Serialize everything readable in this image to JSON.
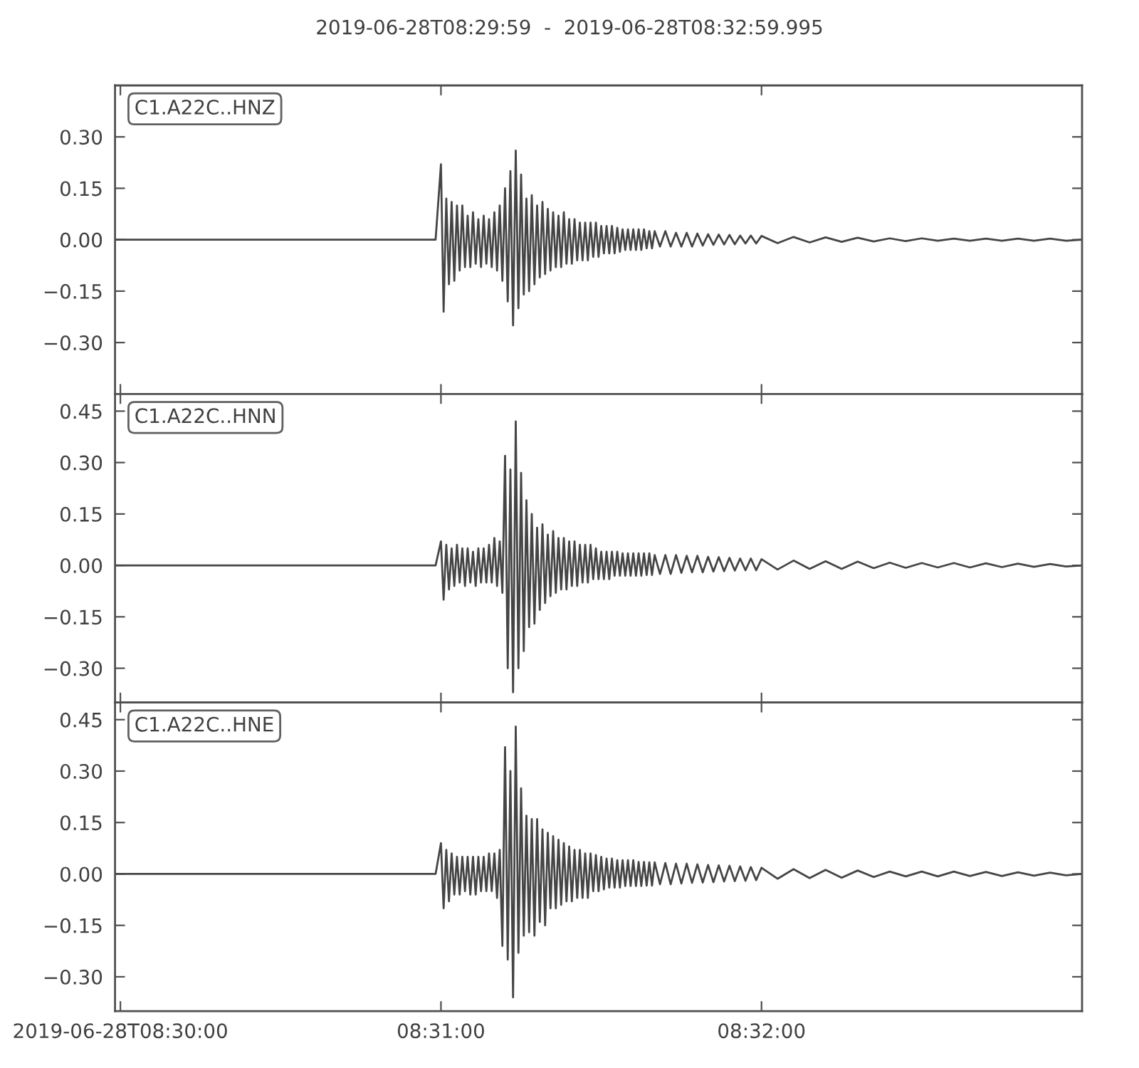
{
  "chart_data": [
    {
      "type": "line",
      "title": "2019-06-28T08:29:59  -  2019-06-28T08:32:59.995",
      "annotations": [
        "C1.A22C..HNZ"
      ],
      "color": "#454545",
      "x": [
        "2019-06-28T08:29:59",
        "2019-06-28T08:30:59",
        "2019-06-28T08:31:00",
        "2019-06-28T08:31:00.5",
        "2019-06-28T08:31:01",
        "2019-06-28T08:31:01.5",
        "2019-06-28T08:31:02",
        "2019-06-28T08:31:02.5",
        "2019-06-28T08:31:03",
        "2019-06-28T08:31:03.5",
        "2019-06-28T08:31:04",
        "2019-06-28T08:31:04.5",
        "2019-06-28T08:31:05",
        "2019-06-28T08:31:05.5",
        "2019-06-28T08:31:06",
        "2019-06-28T08:31:06.5",
        "2019-06-28T08:31:07",
        "2019-06-28T08:31:07.5",
        "2019-06-28T08:31:08",
        "2019-06-28T08:31:08.5",
        "2019-06-28T08:31:09",
        "2019-06-28T08:31:09.5",
        "2019-06-28T08:31:10",
        "2019-06-28T08:31:10.5",
        "2019-06-28T08:31:11",
        "2019-06-28T08:31:11.5",
        "2019-06-28T08:31:12",
        "2019-06-28T08:31:12.5",
        "2019-06-28T08:31:13",
        "2019-06-28T08:31:13.5",
        "2019-06-28T08:31:14",
        "2019-06-28T08:31:14.5",
        "2019-06-28T08:31:15",
        "2019-06-28T08:31:15.5",
        "2019-06-28T08:31:16",
        "2019-06-28T08:31:16.5",
        "2019-06-28T08:31:17",
        "2019-06-28T08:31:17.5",
        "2019-06-28T08:31:18",
        "2019-06-28T08:31:18.5",
        "2019-06-28T08:31:19",
        "2019-06-28T08:31:19.5",
        "2019-06-28T08:31:20",
        "2019-06-28T08:31:20.5",
        "2019-06-28T08:31:21",
        "2019-06-28T08:31:21.5",
        "2019-06-28T08:31:22",
        "2019-06-28T08:31:22.5",
        "2019-06-28T08:31:23",
        "2019-06-28T08:31:23.5",
        "2019-06-28T08:31:24",
        "2019-06-28T08:31:24.5",
        "2019-06-28T08:31:25",
        "2019-06-28T08:31:25.5",
        "2019-06-28T08:31:26",
        "2019-06-28T08:31:26.5",
        "2019-06-28T08:31:27",
        "2019-06-28T08:31:27.5",
        "2019-06-28T08:31:28",
        "2019-06-28T08:31:28.5",
        "2019-06-28T08:31:29",
        "2019-06-28T08:31:29.5",
        "2019-06-28T08:31:30",
        "2019-06-28T08:31:30.5",
        "2019-06-28T08:31:31",
        "2019-06-28T08:31:31.5",
        "2019-06-28T08:31:32",
        "2019-06-28T08:31:32.5",
        "2019-06-28T08:31:33",
        "2019-06-28T08:31:33.5",
        "2019-06-28T08:31:34",
        "2019-06-28T08:31:34.5",
        "2019-06-28T08:31:35",
        "2019-06-28T08:31:35.5",
        "2019-06-28T08:31:36",
        "2019-06-28T08:31:36.5",
        "2019-06-28T08:31:37",
        "2019-06-28T08:31:37.5",
        "2019-06-28T08:31:38",
        "2019-06-28T08:31:38.5",
        "2019-06-28T08:31:39",
        "2019-06-28T08:31:39.5",
        "2019-06-28T08:31:40",
        "2019-06-28T08:31:41",
        "2019-06-28T08:31:42",
        "2019-06-28T08:31:43",
        "2019-06-28T08:31:44",
        "2019-06-28T08:31:45",
        "2019-06-28T08:31:46",
        "2019-06-28T08:31:47",
        "2019-06-28T08:31:48",
        "2019-06-28T08:31:49",
        "2019-06-28T08:31:50",
        "2019-06-28T08:31:51",
        "2019-06-28T08:31:52",
        "2019-06-28T08:31:53",
        "2019-06-28T08:31:54",
        "2019-06-28T08:31:55",
        "2019-06-28T08:31:56",
        "2019-06-28T08:31:57",
        "2019-06-28T08:31:58",
        "2019-06-28T08:31:59",
        "2019-06-28T08:32:00",
        "2019-06-28T08:32:03",
        "2019-06-28T08:32:06",
        "2019-06-28T08:32:09",
        "2019-06-28T08:32:12",
        "2019-06-28T08:32:15",
        "2019-06-28T08:32:18",
        "2019-06-28T08:32:21",
        "2019-06-28T08:32:24",
        "2019-06-28T08:32:27",
        "2019-06-28T08:32:30",
        "2019-06-28T08:32:33",
        "2019-06-28T08:32:36",
        "2019-06-28T08:32:39",
        "2019-06-28T08:32:42",
        "2019-06-28T08:32:45",
        "2019-06-28T08:32:48",
        "2019-06-28T08:32:51",
        "2019-06-28T08:32:54",
        "2019-06-28T08:32:57",
        "2019-06-28T08:32:59.995"
      ],
      "values": [
        0,
        0,
        0.22,
        -0.21,
        0.12,
        -0.13,
        0.11,
        -0.12,
        0.1,
        -0.09,
        0.1,
        -0.08,
        0.07,
        -0.08,
        0.08,
        -0.07,
        0.06,
        -0.08,
        0.07,
        -0.07,
        0.06,
        -0.08,
        0.08,
        -0.09,
        0.1,
        -0.12,
        0.15,
        -0.18,
        0.2,
        -0.25,
        0.26,
        -0.2,
        0.19,
        -0.16,
        0.12,
        -0.15,
        0.13,
        -0.13,
        0.1,
        -0.11,
        0.11,
        -0.1,
        0.09,
        -0.09,
        0.08,
        -0.08,
        0.07,
        -0.08,
        0.08,
        -0.07,
        0.06,
        -0.07,
        0.06,
        -0.06,
        0.05,
        -0.06,
        0.05,
        -0.06,
        0.05,
        -0.05,
        0.05,
        -0.05,
        0.04,
        -0.04,
        0.04,
        -0.04,
        0.04,
        -0.04,
        0.035,
        -0.035,
        0.03,
        -0.03,
        0.03,
        -0.03,
        0.03,
        -0.03,
        0.03,
        -0.03,
        0.03,
        -0.025,
        0.025,
        -0.025,
        0.025,
        -0.02,
        0.025,
        -0.02,
        0.02,
        -0.02,
        0.02,
        -0.02,
        0.018,
        -0.017,
        0.016,
        -0.015,
        0.015,
        -0.014,
        0.014,
        -0.013,
        0.012,
        -0.011,
        0.012,
        -0.011,
        0.011,
        -0.01,
        0.008,
        -0.008,
        0.007,
        -0.006,
        0.006,
        -0.005,
        0.004,
        -0.004,
        0.004,
        -0.003,
        0.003,
        -0.003,
        0.003,
        -0.003,
        0.003,
        -0.003,
        0.003,
        -0.003,
        0
      ],
      "xlim": [
        "2019-06-28T08:29:59",
        "2019-06-28T08:32:59.995"
      ],
      "xticks": [
        {
          "value": "2019-06-28T08:30:00",
          "label": null
        },
        {
          "value": "2019-06-28T08:31:00",
          "label": null
        },
        {
          "value": "2019-06-28T08:32:00",
          "label": null
        }
      ],
      "ylim": [
        -0.45,
        0.45
      ],
      "yticks": [
        {
          "value": -0.3,
          "label": "−0.30"
        },
        {
          "value": -0.15,
          "label": "−0.15"
        },
        {
          "value": 0,
          "label": "0.00"
        },
        {
          "value": 0.15,
          "label": "0.15"
        },
        {
          "value": 0.3,
          "label": "0.30"
        }
      ],
      "tick_labels": "y"
    },
    {
      "type": "line",
      "annotations": [
        "C1.A22C..HNN"
      ],
      "color": "#454545",
      "x": [
        "2019-06-28T08:29:59",
        "2019-06-28T08:30:59",
        "2019-06-28T08:31:00",
        "2019-06-28T08:31:00.5",
        "2019-06-28T08:31:01",
        "2019-06-28T08:31:01.5",
        "2019-06-28T08:31:02",
        "2019-06-28T08:31:02.5",
        "2019-06-28T08:31:03",
        "2019-06-28T08:31:03.5",
        "2019-06-28T08:31:04",
        "2019-06-28T08:31:04.5",
        "2019-06-28T08:31:05",
        "2019-06-28T08:31:05.5",
        "2019-06-28T08:31:06",
        "2019-06-28T08:31:06.5",
        "2019-06-28T08:31:07",
        "2019-06-28T08:31:07.5",
        "2019-06-28T08:31:08",
        "2019-06-28T08:31:08.5",
        "2019-06-28T08:31:09",
        "2019-06-28T08:31:09.5",
        "2019-06-28T08:31:10",
        "2019-06-28T08:31:10.5",
        "2019-06-28T08:31:11",
        "2019-06-28T08:31:11.5",
        "2019-06-28T08:31:12",
        "2019-06-28T08:31:12.5",
        "2019-06-28T08:31:13",
        "2019-06-28T08:31:13.5",
        "2019-06-28T08:31:14",
        "2019-06-28T08:31:14.5",
        "2019-06-28T08:31:15",
        "2019-06-28T08:31:15.5",
        "2019-06-28T08:31:16",
        "2019-06-28T08:31:16.5",
        "2019-06-28T08:31:17",
        "2019-06-28T08:31:17.5",
        "2019-06-28T08:31:18",
        "2019-06-28T08:31:18.5",
        "2019-06-28T08:31:19",
        "2019-06-28T08:31:19.5",
        "2019-06-28T08:31:20",
        "2019-06-28T08:31:20.5",
        "2019-06-28T08:31:21",
        "2019-06-28T08:31:21.5",
        "2019-06-28T08:31:22",
        "2019-06-28T08:31:22.5",
        "2019-06-28T08:31:23",
        "2019-06-28T08:31:23.5",
        "2019-06-28T08:31:24",
        "2019-06-28T08:31:24.5",
        "2019-06-28T08:31:25",
        "2019-06-28T08:31:25.5",
        "2019-06-28T08:31:26",
        "2019-06-28T08:31:26.5",
        "2019-06-28T08:31:27",
        "2019-06-28T08:31:27.5",
        "2019-06-28T08:31:28",
        "2019-06-28T08:31:28.5",
        "2019-06-28T08:31:29",
        "2019-06-28T08:31:29.5",
        "2019-06-28T08:31:30",
        "2019-06-28T08:31:30.5",
        "2019-06-28T08:31:31",
        "2019-06-28T08:31:31.5",
        "2019-06-28T08:31:32",
        "2019-06-28T08:31:32.5",
        "2019-06-28T08:31:33",
        "2019-06-28T08:31:33.5",
        "2019-06-28T08:31:34",
        "2019-06-28T08:31:34.5",
        "2019-06-28T08:31:35",
        "2019-06-28T08:31:35.5",
        "2019-06-28T08:31:36",
        "2019-06-28T08:31:36.5",
        "2019-06-28T08:31:37",
        "2019-06-28T08:31:37.5",
        "2019-06-28T08:31:38",
        "2019-06-28T08:31:38.5",
        "2019-06-28T08:31:39",
        "2019-06-28T08:31:39.5",
        "2019-06-28T08:31:40",
        "2019-06-28T08:31:41",
        "2019-06-28T08:31:42",
        "2019-06-28T08:31:43",
        "2019-06-28T08:31:44",
        "2019-06-28T08:31:45",
        "2019-06-28T08:31:46",
        "2019-06-28T08:31:47",
        "2019-06-28T08:31:48",
        "2019-06-28T08:31:49",
        "2019-06-28T08:31:50",
        "2019-06-28T08:31:51",
        "2019-06-28T08:31:52",
        "2019-06-28T08:31:53",
        "2019-06-28T08:31:54",
        "2019-06-28T08:31:55",
        "2019-06-28T08:31:56",
        "2019-06-28T08:31:57",
        "2019-06-28T08:31:58",
        "2019-06-28T08:31:59",
        "2019-06-28T08:32:00",
        "2019-06-28T08:32:03",
        "2019-06-28T08:32:06",
        "2019-06-28T08:32:09",
        "2019-06-28T08:32:12",
        "2019-06-28T08:32:15",
        "2019-06-28T08:32:18",
        "2019-06-28T08:32:21",
        "2019-06-28T08:32:24",
        "2019-06-28T08:32:27",
        "2019-06-28T08:32:30",
        "2019-06-28T08:32:33",
        "2019-06-28T08:32:36",
        "2019-06-28T08:32:39",
        "2019-06-28T08:32:42",
        "2019-06-28T08:32:45",
        "2019-06-28T08:32:48",
        "2019-06-28T08:32:51",
        "2019-06-28T08:32:54",
        "2019-06-28T08:32:57",
        "2019-06-28T08:32:59.995"
      ],
      "values": [
        0,
        0,
        0.07,
        -0.1,
        0.06,
        -0.07,
        0.05,
        -0.06,
        0.06,
        -0.05,
        0.05,
        -0.06,
        0.05,
        -0.05,
        0.04,
        -0.06,
        0.05,
        -0.05,
        0.05,
        -0.05,
        0.06,
        -0.05,
        0.08,
        -0.06,
        0.07,
        -0.08,
        0.32,
        -0.3,
        0.28,
        -0.37,
        0.42,
        -0.3,
        0.27,
        -0.25,
        0.19,
        -0.18,
        0.15,
        -0.17,
        0.11,
        -0.13,
        0.12,
        -0.11,
        0.09,
        -0.09,
        0.1,
        -0.08,
        0.08,
        -0.07,
        0.08,
        -0.07,
        0.07,
        -0.06,
        0.07,
        -0.06,
        0.06,
        -0.05,
        0.06,
        -0.05,
        0.06,
        -0.04,
        0.05,
        -0.04,
        0.04,
        -0.04,
        0.04,
        -0.04,
        0.04,
        -0.03,
        0.04,
        -0.03,
        0.035,
        -0.03,
        0.035,
        -0.03,
        0.035,
        -0.03,
        0.035,
        -0.03,
        0.035,
        -0.028,
        0.035,
        -0.028,
        0.03,
        -0.025,
        0.03,
        -0.025,
        0.03,
        -0.022,
        0.028,
        -0.02,
        0.028,
        -0.02,
        0.025,
        -0.018,
        0.024,
        -0.017,
        0.022,
        -0.015,
        0.02,
        -0.014,
        0.02,
        -0.014,
        0.018,
        -0.012,
        0.014,
        -0.01,
        0.012,
        -0.01,
        0.011,
        -0.008,
        0.008,
        -0.007,
        0.007,
        -0.006,
        0.007,
        -0.006,
        0.006,
        -0.005,
        0.005,
        -0.004,
        0.004,
        -0.003,
        0
      ],
      "xlim": [
        "2019-06-28T08:29:59",
        "2019-06-28T08:32:59.995"
      ],
      "xticks": [
        {
          "value": "2019-06-28T08:30:00",
          "label": null
        },
        {
          "value": "2019-06-28T08:31:00",
          "label": null
        },
        {
          "value": "2019-06-28T08:32:00",
          "label": null
        }
      ],
      "ylim": [
        -0.4,
        0.5
      ],
      "yticks": [
        {
          "value": -0.3,
          "label": "−0.30"
        },
        {
          "value": -0.15,
          "label": "−0.15"
        },
        {
          "value": 0,
          "label": "0.00"
        },
        {
          "value": 0.15,
          "label": "0.15"
        },
        {
          "value": 0.3,
          "label": "0.30"
        },
        {
          "value": 0.45,
          "label": "0.45"
        }
      ],
      "tick_labels": "y"
    },
    {
      "type": "line",
      "annotations": [
        "C1.A22C..HNE"
      ],
      "color": "#454545",
      "x": [
        "2019-06-28T08:29:59",
        "2019-06-28T08:30:59",
        "2019-06-28T08:31:00",
        "2019-06-28T08:31:00.5",
        "2019-06-28T08:31:01",
        "2019-06-28T08:31:01.5",
        "2019-06-28T08:31:02",
        "2019-06-28T08:31:02.5",
        "2019-06-28T08:31:03",
        "2019-06-28T08:31:03.5",
        "2019-06-28T08:31:04",
        "2019-06-28T08:31:04.5",
        "2019-06-28T08:31:05",
        "2019-06-28T08:31:05.5",
        "2019-06-28T08:31:06",
        "2019-06-28T08:31:06.5",
        "2019-06-28T08:31:07",
        "2019-06-28T08:31:07.5",
        "2019-06-28T08:31:08",
        "2019-06-28T08:31:08.5",
        "2019-06-28T08:31:09",
        "2019-06-28T08:31:09.5",
        "2019-06-28T08:31:10",
        "2019-06-28T08:31:10.5",
        "2019-06-28T08:31:11",
        "2019-06-28T08:31:11.5",
        "2019-06-28T08:31:12",
        "2019-06-28T08:31:12.5",
        "2019-06-28T08:31:13",
        "2019-06-28T08:31:13.5",
        "2019-06-28T08:31:14",
        "2019-06-28T08:31:14.5",
        "2019-06-28T08:31:15",
        "2019-06-28T08:31:15.5",
        "2019-06-28T08:31:16",
        "2019-06-28T08:31:16.5",
        "2019-06-28T08:31:17",
        "2019-06-28T08:31:17.5",
        "2019-06-28T08:31:18",
        "2019-06-28T08:31:18.5",
        "2019-06-28T08:31:19",
        "2019-06-28T08:31:19.5",
        "2019-06-28T08:31:20",
        "2019-06-28T08:31:20.5",
        "2019-06-28T08:31:21",
        "2019-06-28T08:31:21.5",
        "2019-06-28T08:31:22",
        "2019-06-28T08:31:22.5",
        "2019-06-28T08:31:23",
        "2019-06-28T08:31:23.5",
        "2019-06-28T08:31:24",
        "2019-06-28T08:31:24.5",
        "2019-06-28T08:31:25",
        "2019-06-28T08:31:25.5",
        "2019-06-28T08:31:26",
        "2019-06-28T08:31:26.5",
        "2019-06-28T08:31:27",
        "2019-06-28T08:31:27.5",
        "2019-06-28T08:31:28",
        "2019-06-28T08:31:28.5",
        "2019-06-28T08:31:29",
        "2019-06-28T08:31:29.5",
        "2019-06-28T08:31:30",
        "2019-06-28T08:31:30.5",
        "2019-06-28T08:31:31",
        "2019-06-28T08:31:31.5",
        "2019-06-28T08:31:32",
        "2019-06-28T08:31:32.5",
        "2019-06-28T08:31:33",
        "2019-06-28T08:31:33.5",
        "2019-06-28T08:31:34",
        "2019-06-28T08:31:34.5",
        "2019-06-28T08:31:35",
        "2019-06-28T08:31:35.5",
        "2019-06-28T08:31:36",
        "2019-06-28T08:31:36.5",
        "2019-06-28T08:31:37",
        "2019-06-28T08:31:37.5",
        "2019-06-28T08:31:38",
        "2019-06-28T08:31:38.5",
        "2019-06-28T08:31:39",
        "2019-06-28T08:31:39.5",
        "2019-06-28T08:31:40",
        "2019-06-28T08:31:41",
        "2019-06-28T08:31:42",
        "2019-06-28T08:31:43",
        "2019-06-28T08:31:44",
        "2019-06-28T08:31:45",
        "2019-06-28T08:31:46",
        "2019-06-28T08:31:47",
        "2019-06-28T08:31:48",
        "2019-06-28T08:31:49",
        "2019-06-28T08:31:50",
        "2019-06-28T08:31:51",
        "2019-06-28T08:31:52",
        "2019-06-28T08:31:53",
        "2019-06-28T08:31:54",
        "2019-06-28T08:31:55",
        "2019-06-28T08:31:56",
        "2019-06-28T08:31:57",
        "2019-06-28T08:31:58",
        "2019-06-28T08:31:59",
        "2019-06-28T08:32:00",
        "2019-06-28T08:32:03",
        "2019-06-28T08:32:06",
        "2019-06-28T08:32:09",
        "2019-06-28T08:32:12",
        "2019-06-28T08:32:15",
        "2019-06-28T08:32:18",
        "2019-06-28T08:32:21",
        "2019-06-28T08:32:24",
        "2019-06-28T08:32:27",
        "2019-06-28T08:32:30",
        "2019-06-28T08:32:33",
        "2019-06-28T08:32:36",
        "2019-06-28T08:32:39",
        "2019-06-28T08:32:42",
        "2019-06-28T08:32:45",
        "2019-06-28T08:32:48",
        "2019-06-28T08:32:51",
        "2019-06-28T08:32:54",
        "2019-06-28T08:32:57",
        "2019-06-28T08:32:59.995"
      ],
      "values": [
        0,
        0,
        0.09,
        -0.1,
        0.07,
        -0.08,
        0.06,
        -0.06,
        0.05,
        -0.06,
        0.05,
        -0.05,
        0.05,
        -0.06,
        0.05,
        -0.06,
        0.05,
        -0.05,
        0.05,
        -0.05,
        0.06,
        -0.05,
        0.06,
        -0.07,
        0.07,
        -0.21,
        0.37,
        -0.25,
        0.3,
        -0.36,
        0.43,
        -0.23,
        0.25,
        -0.18,
        0.17,
        -0.17,
        0.16,
        -0.18,
        0.16,
        -0.14,
        0.13,
        -0.15,
        0.12,
        -0.1,
        0.11,
        -0.1,
        0.1,
        -0.09,
        0.09,
        -0.08,
        0.08,
        -0.08,
        0.07,
        -0.07,
        0.07,
        -0.07,
        0.06,
        -0.07,
        0.06,
        -0.05,
        0.055,
        -0.05,
        0.05,
        -0.045,
        0.045,
        -0.04,
        0.045,
        -0.04,
        0.04,
        -0.04,
        0.04,
        -0.035,
        0.04,
        -0.035,
        0.04,
        -0.035,
        0.035,
        -0.035,
        0.035,
        -0.034,
        0.034,
        -0.034,
        0.034,
        -0.03,
        0.032,
        -0.03,
        0.03,
        -0.028,
        0.03,
        -0.026,
        0.028,
        -0.025,
        0.026,
        -0.024,
        0.025,
        -0.022,
        0.024,
        -0.021,
        0.022,
        -0.02,
        0.02,
        -0.018,
        0.018,
        -0.014,
        0.014,
        -0.012,
        0.012,
        -0.011,
        0.01,
        -0.009,
        0.007,
        -0.007,
        0.007,
        -0.007,
        0.007,
        -0.006,
        0.006,
        -0.006,
        0.005,
        -0.005,
        0.004,
        -0.004,
        0
      ],
      "xlim": [
        "2019-06-28T08:29:59",
        "2019-06-28T08:32:59.995"
      ],
      "xticks": [
        {
          "value": "2019-06-28T08:30:00",
          "label": "2019-06-28T08:30:00"
        },
        {
          "value": "2019-06-28T08:31:00",
          "label": "08:31:00"
        },
        {
          "value": "2019-06-28T08:32:00",
          "label": "08:32:00"
        }
      ],
      "ylim": [
        -0.4,
        0.5
      ],
      "yticks": [
        {
          "value": -0.3,
          "label": "−0.30"
        },
        {
          "value": -0.15,
          "label": "−0.15"
        },
        {
          "value": 0,
          "label": "0.00"
        },
        {
          "value": 0.15,
          "label": "0.15"
        },
        {
          "value": 0.3,
          "label": "0.30"
        },
        {
          "value": 0.45,
          "label": "0.45"
        }
      ]
    }
  ]
}
